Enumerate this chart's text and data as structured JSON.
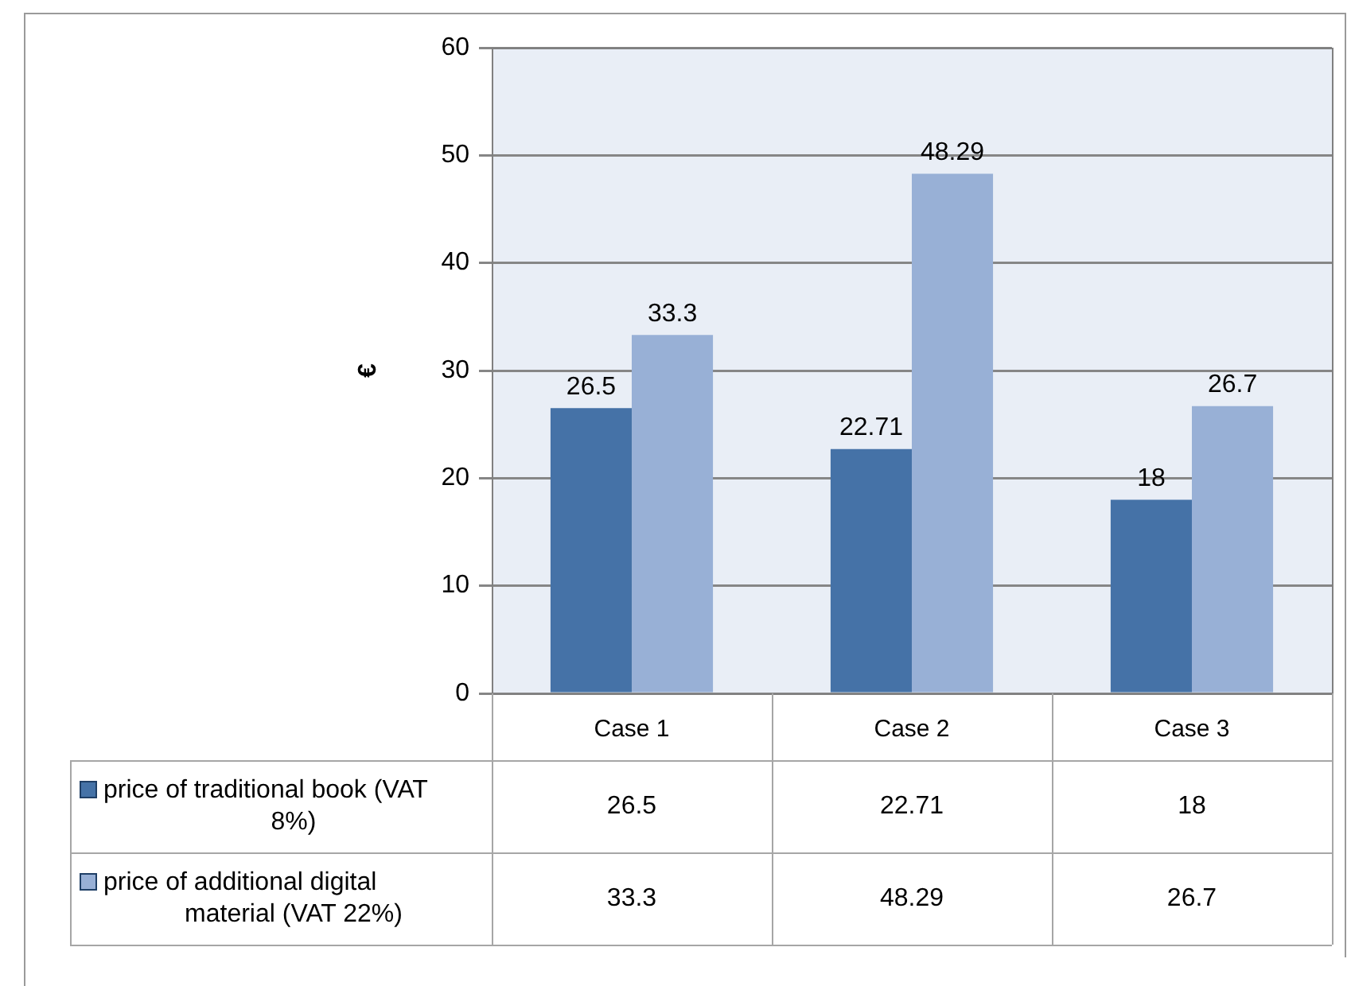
{
  "chart_data": {
    "type": "bar",
    "ylabel": "€",
    "categories": [
      "Case 1",
      "Case 2",
      "Case 3"
    ],
    "series": [
      {
        "name": "price of traditional book (VAT 8%)",
        "color": "#4572a7",
        "values": [
          26.5,
          22.71,
          18
        ],
        "value_labels": [
          "26.5",
          "22.71",
          "18"
        ]
      },
      {
        "name": "price of additional digital material (VAT 22%)",
        "color": "#98b0d6",
        "values": [
          33.3,
          48.29,
          26.7
        ],
        "value_labels": [
          "33.3",
          "48.29",
          "26.7"
        ]
      }
    ],
    "ylim": [
      0,
      60
    ],
    "yticks": [
      0,
      10,
      20,
      30,
      40,
      50,
      60
    ],
    "annotations": [
      "26.5",
      "22.71",
      "18",
      "33.3",
      "48.29",
      "26.7"
    ],
    "grid": "y",
    "legend": "bottom"
  }
}
